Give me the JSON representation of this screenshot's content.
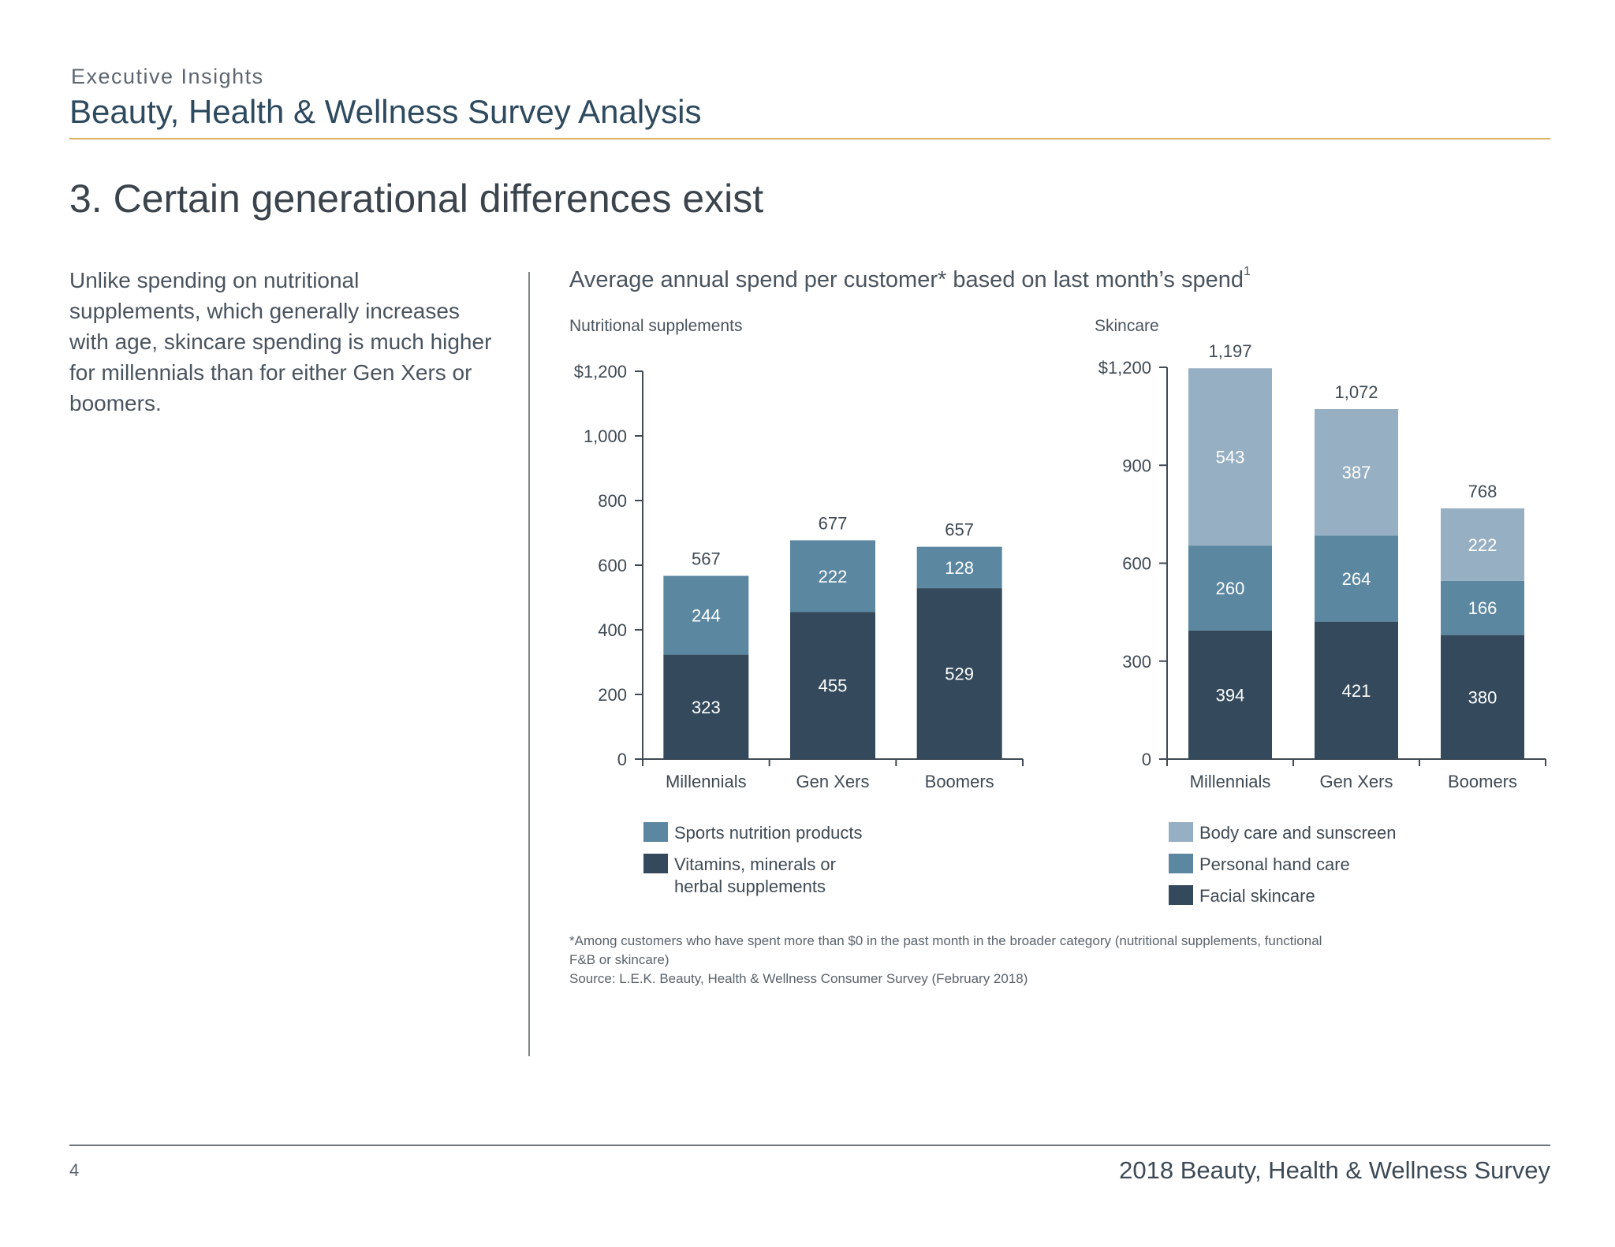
{
  "header": {
    "eyebrow": "Executive Insights",
    "title": "Beauty, Health & Wellness Survey Analysis"
  },
  "slide": {
    "heading": "3. Certain generational differences exist",
    "body": "Unlike spending on nutritional supplements, which generally increases with age, skincare spending is much higher for millennials than for either Gen Xers or boomers.",
    "chart_title": "Average annual spend per customer* based on last month’s spend",
    "chart_title_sup": "1"
  },
  "footnote": {
    "line1": "*Among customers who have spent more than $0 in the past month in the broader category (nutritional supplements, functional F&B or skincare)",
    "line2": "Source: L.E.K. Beauty, Health & Wellness Consumer Survey (February 2018)"
  },
  "footer": {
    "page_number": "4",
    "text": "2018 Beauty, Health & Wellness Survey"
  },
  "colors": {
    "dark": "#344a5c",
    "mid": "#5b87a1",
    "light": "#97afc2"
  },
  "chart_data": [
    {
      "type": "bar",
      "stacked": true,
      "subtitle": "Nutritional supplements",
      "categories": [
        "Millennials",
        "Gen Xers",
        "Boomers"
      ],
      "ylim": [
        0,
        1200
      ],
      "yticks": [
        0,
        200,
        400,
        600,
        800,
        1000,
        1200
      ],
      "ytick_labels": [
        "0",
        "200",
        "400",
        "600",
        "800",
        "1,000",
        "$1,200"
      ],
      "series": [
        {
          "name": "Vitamins, minerals or\nherbal supplements",
          "values": [
            323,
            455,
            529
          ],
          "color": "#344a5c"
        },
        {
          "name": "Sports nutrition products",
          "values": [
            244,
            222,
            128
          ],
          "color": "#5b87a1"
        }
      ],
      "totals": [
        567,
        677,
        657
      ],
      "total_labels": [
        "567",
        "677",
        "657"
      ],
      "legend_order": [
        1,
        0
      ]
    },
    {
      "type": "bar",
      "stacked": true,
      "subtitle": "Skincare",
      "categories": [
        "Millennials",
        "Gen Xers",
        "Boomers"
      ],
      "ylim": [
        0,
        1200
      ],
      "yticks": [
        0,
        300,
        600,
        900,
        1200
      ],
      "ytick_labels": [
        "0",
        "300",
        "600",
        "900",
        "$1,200"
      ],
      "series": [
        {
          "name": "Facial skincare",
          "values": [
            394,
            421,
            380
          ],
          "color": "#344a5c"
        },
        {
          "name": "Personal hand care",
          "values": [
            260,
            264,
            166
          ],
          "color": "#5b87a1"
        },
        {
          "name": "Body care and sunscreen",
          "values": [
            543,
            387,
            222
          ],
          "color": "#97afc2"
        }
      ],
      "totals": [
        1197,
        1072,
        768
      ],
      "total_labels": [
        "1,197",
        "1,072",
        "768"
      ],
      "legend_order": [
        2,
        1,
        0
      ]
    }
  ]
}
